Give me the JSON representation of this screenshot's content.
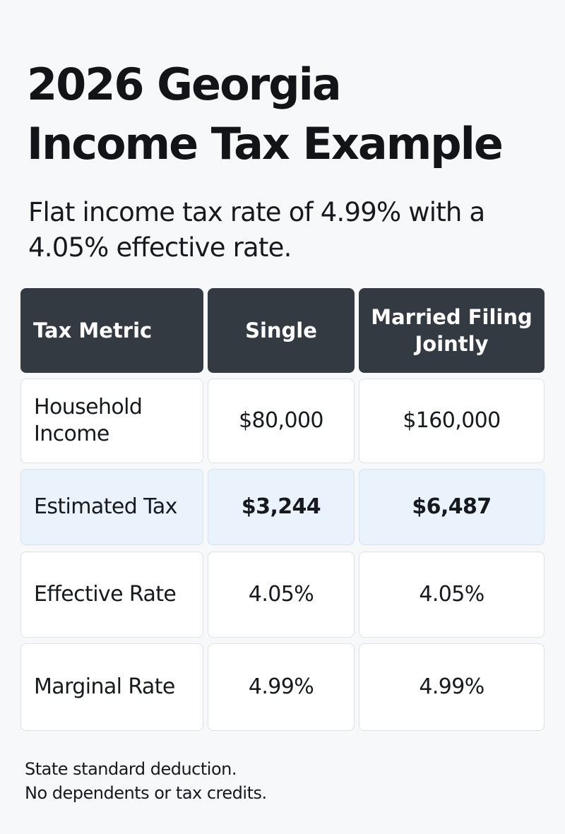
{
  "header": {
    "title_lines": [
      "2026 Georgia",
      "Income Tax Example"
    ],
    "subtitle_lines": [
      "Flat income tax rate of 4.99% with a",
      "4.05% effective rate."
    ]
  },
  "table": {
    "columns": [
      "Tax Metric",
      "Single",
      "Married Filing Jointly"
    ],
    "rows": [
      {
        "metric": "Household Income",
        "single": "$80,000",
        "married": "$160,000"
      },
      {
        "metric": "Estimated Tax",
        "single": "$3,244",
        "married": "$6,487"
      },
      {
        "metric": "Effective Rate",
        "single": "4.05%",
        "married": "4.05%"
      },
      {
        "metric": "Marginal Rate",
        "single": "4.99%",
        "married": "4.99%"
      }
    ]
  },
  "footnote": {
    "lines": [
      "State standard deduction.",
      "No dependents or tax credits."
    ]
  },
  "colors": {
    "header_bg": "#343a42",
    "highlight_bg": "#eaf3fc",
    "page_bg": "#f7f8fa"
  }
}
